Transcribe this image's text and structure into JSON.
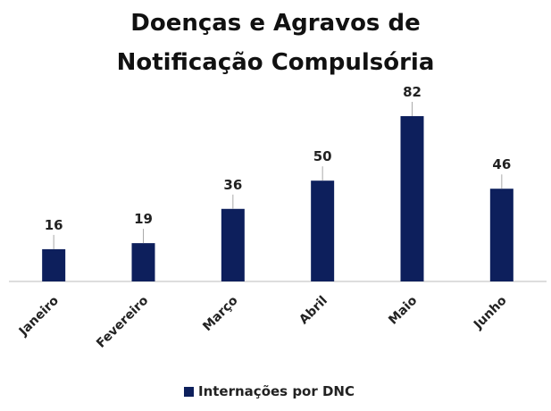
{
  "chart_data": {
    "type": "bar",
    "title": "Doenças e Agravos de Notificação Compulsória",
    "categories": [
      "Janeiro",
      "Fevereiro",
      "Março",
      "Abril",
      "Maio",
      "Junho"
    ],
    "series": [
      {
        "name": "Internações por DNC",
        "color": "#0d1f5c",
        "values": [
          16,
          19,
          36,
          50,
          82,
          46
        ]
      }
    ],
    "legend": "bottom"
  }
}
